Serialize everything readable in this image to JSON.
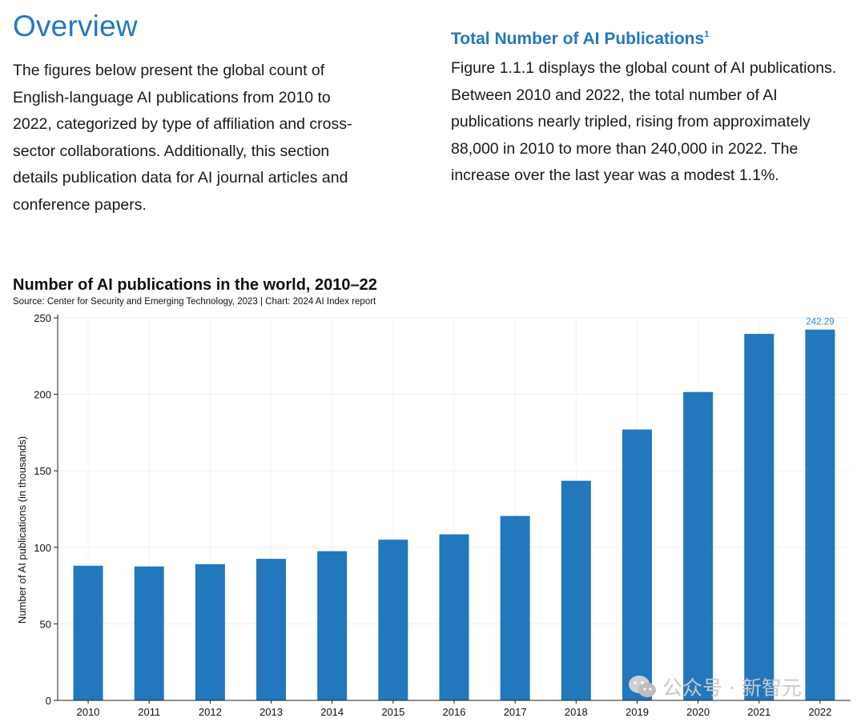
{
  "overview": {
    "title": "Overview",
    "body_lines": [
      "The figures below present the global count of",
      "English-language AI publications from 2010 to",
      "2022, categorized by type of affiliation and cross-",
      "sector collaborations. Additionally, this section",
      "details publication data for AI journal articles and",
      "conference papers."
    ]
  },
  "section": {
    "title": "Total Number of AI Publications",
    "footnote": "1",
    "body_lines": [
      "Figure 1.1.1 displays the global count of AI publications.",
      "Between 2010 and 2022, the total number of AI",
      "publications nearly tripled, rising from approximately",
      "88,000 in 2010 to more than 240,000 in 2022. The",
      "increase over the last year was a modest 1.1%."
    ]
  },
  "chart_data": {
    "type": "bar",
    "title": "Number of AI publications in the world, 2010–22",
    "subtitle": "Source: Center for Security and Emerging Technology, 2023 | Chart: 2024 AI Index report",
    "xlabel": "",
    "ylabel": "Number of AI publications (in thousands)",
    "categories": [
      "2010",
      "2011",
      "2012",
      "2013",
      "2014",
      "2015",
      "2016",
      "2017",
      "2018",
      "2019",
      "2020",
      "2021",
      "2022"
    ],
    "values": [
      88,
      87.5,
      89,
      92.5,
      97.5,
      105,
      108.5,
      120.5,
      143.5,
      177,
      201.5,
      239.5,
      242.29
    ],
    "yticks": [
      0,
      50,
      100,
      150,
      200,
      250
    ],
    "ylim": [
      0,
      250
    ],
    "grid": true,
    "data_labels": [
      {
        "category": "2022",
        "text": "242.29"
      }
    ],
    "bar_color": "#2277bd",
    "label_color": "#2f86cf"
  },
  "watermark": {
    "icon": "wechat-icon",
    "text": "公众号 · 新智元"
  }
}
